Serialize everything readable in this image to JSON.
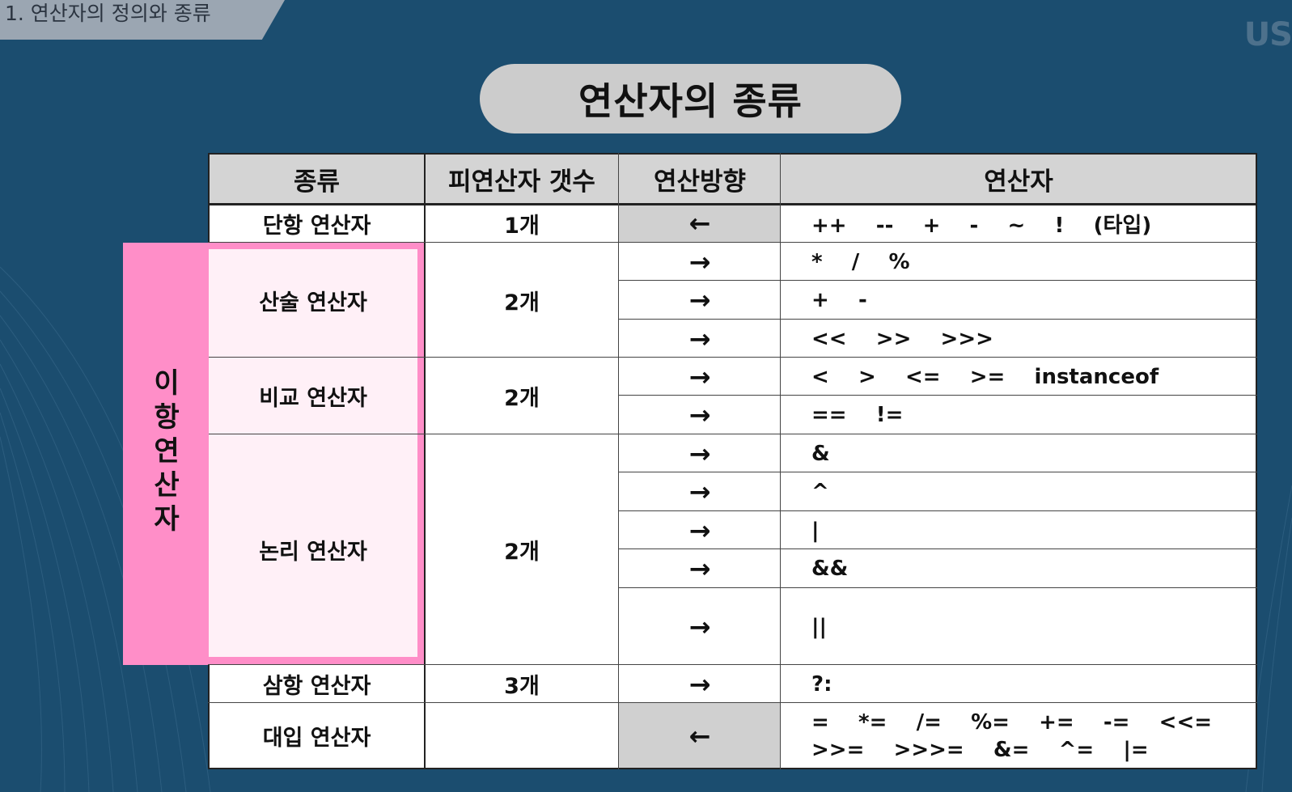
{
  "chapter_tab": "1. 연산자의 정의와 종류",
  "corner_logo": "US",
  "title": "연산자의 종류",
  "binary_group_label": "이항연산자",
  "headers": {
    "kind": "종류",
    "operand_count": "피연산자 갯수",
    "direction": "연산방향",
    "operators": "연산자"
  },
  "categories": {
    "unary": {
      "kind": "단항 연산자",
      "count": "1개"
    },
    "arithmetic": {
      "kind": "산술 연산자",
      "count": "2개"
    },
    "comparison": {
      "kind": "비교 연산자",
      "count": "2개"
    },
    "logical": {
      "kind": "논리 연산자",
      "count": "2개"
    },
    "ternary": {
      "kind": "삼항 연산자",
      "count": "3개"
    },
    "assignment": {
      "kind": "대입 연산자",
      "count": ""
    }
  },
  "operator_rows": [
    {
      "direction": "←",
      "operators": "++    --    +    -    ~    !    (타입)"
    },
    {
      "direction": "→",
      "operators": "*    /    %"
    },
    {
      "direction": "→",
      "operators": "+    -"
    },
    {
      "direction": "→",
      "operators": "<<    >>    >>>"
    },
    {
      "direction": "→",
      "operators": "<    >    <=    >=    instanceof"
    },
    {
      "direction": "→",
      "operators": "==    !="
    },
    {
      "direction": "→",
      "operators": "&"
    },
    {
      "direction": "→",
      "operators": "^"
    },
    {
      "direction": "→",
      "operators": "|"
    },
    {
      "direction": "→",
      "operators": "&&"
    },
    {
      "direction": "→",
      "operators": "||"
    },
    {
      "direction": "→",
      "operators": "?:"
    },
    {
      "direction": "←",
      "operators_line1": "=    *=    /=    %=    +=    -=    <<=",
      "operators_line2": ">>=    >>>=    &=    ^=    |="
    }
  ]
}
